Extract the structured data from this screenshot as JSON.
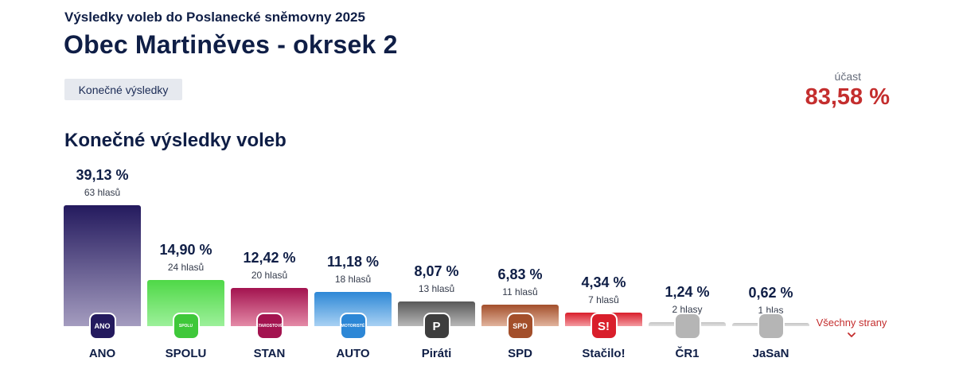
{
  "header": {
    "subtitle": "Výsledky voleb do Poslanecké sněmovny 2025",
    "title": "Obec Martiněves - okrsek 2",
    "status_badge": "Konečné výsledky"
  },
  "turnout": {
    "label": "účast",
    "value": "83,58 %",
    "color": "#c42e2e"
  },
  "section_title": "Konečné výsledky voleb",
  "all_parties_link": "Všechny strany",
  "chart_data": {
    "type": "bar",
    "categories": [
      "ANO",
      "SPOLU",
      "STAN",
      "AUTO",
      "Piráti",
      "SPD",
      "Stačilo!",
      "ČR1",
      "JaSaN"
    ],
    "values": [
      39.13,
      14.9,
      12.42,
      11.18,
      8.07,
      6.83,
      4.34,
      1.24,
      0.62
    ],
    "percent_labels": [
      "39,13 %",
      "14,90 %",
      "12,42 %",
      "11,18 %",
      "8,07 %",
      "6,83 %",
      "4,34 %",
      "1,24 %",
      "0,62 %"
    ],
    "votes": [
      63,
      24,
      20,
      18,
      13,
      11,
      7,
      2,
      1
    ],
    "vote_labels": [
      "63 hlasů",
      "24 hlasů",
      "20 hlasů",
      "18 hlasů",
      "13 hlasů",
      "11 hlasů",
      "7 hlasů",
      "2 hlasy",
      "1 hlas"
    ],
    "colors": [
      [
        "#241a5e",
        "#a49cbf"
      ],
      [
        "#4fd847",
        "#9cf09a"
      ],
      [
        "#a3134f",
        "#e48aa7"
      ],
      [
        "#2d87d6",
        "#a8d1f3"
      ],
      [
        "#585858",
        "#b8b8b8"
      ],
      [
        "#a34f2b",
        "#e1b39c"
      ],
      [
        "#d91e2b",
        "#f39aa0"
      ],
      [
        "#c4c4c4",
        "#e0e0e0"
      ],
      [
        "#c4c4c4",
        "#e0e0e0"
      ]
    ],
    "logos": [
      {
        "name": "ano-logo-icon",
        "text": "ANO",
        "bg": "#241a5e"
      },
      {
        "name": "spolu-logo-icon",
        "text": "SPOLU",
        "bg": "#3fc83a"
      },
      {
        "name": "stan-logo-icon",
        "text": "STAROSTOVÉ",
        "bg": "#a3134f"
      },
      {
        "name": "motoriste-logo-icon",
        "text": "MOTORISTÉ",
        "bg": "#2d87d6"
      },
      {
        "name": "pirati-logo-icon",
        "text": "P",
        "bg": "#3e3e3e"
      },
      {
        "name": "spd-logo-icon",
        "text": "SPD",
        "bg": "#a34f2b"
      },
      {
        "name": "stacilo-logo-icon",
        "text": "S!",
        "bg": "#d91e2b"
      },
      {
        "name": "cr1-logo-icon",
        "text": "",
        "bg": "#b5b5b5"
      },
      {
        "name": "jasan-logo-icon",
        "text": "",
        "bg": "#b5b5b5"
      }
    ],
    "ylim": [
      0,
      40
    ]
  }
}
